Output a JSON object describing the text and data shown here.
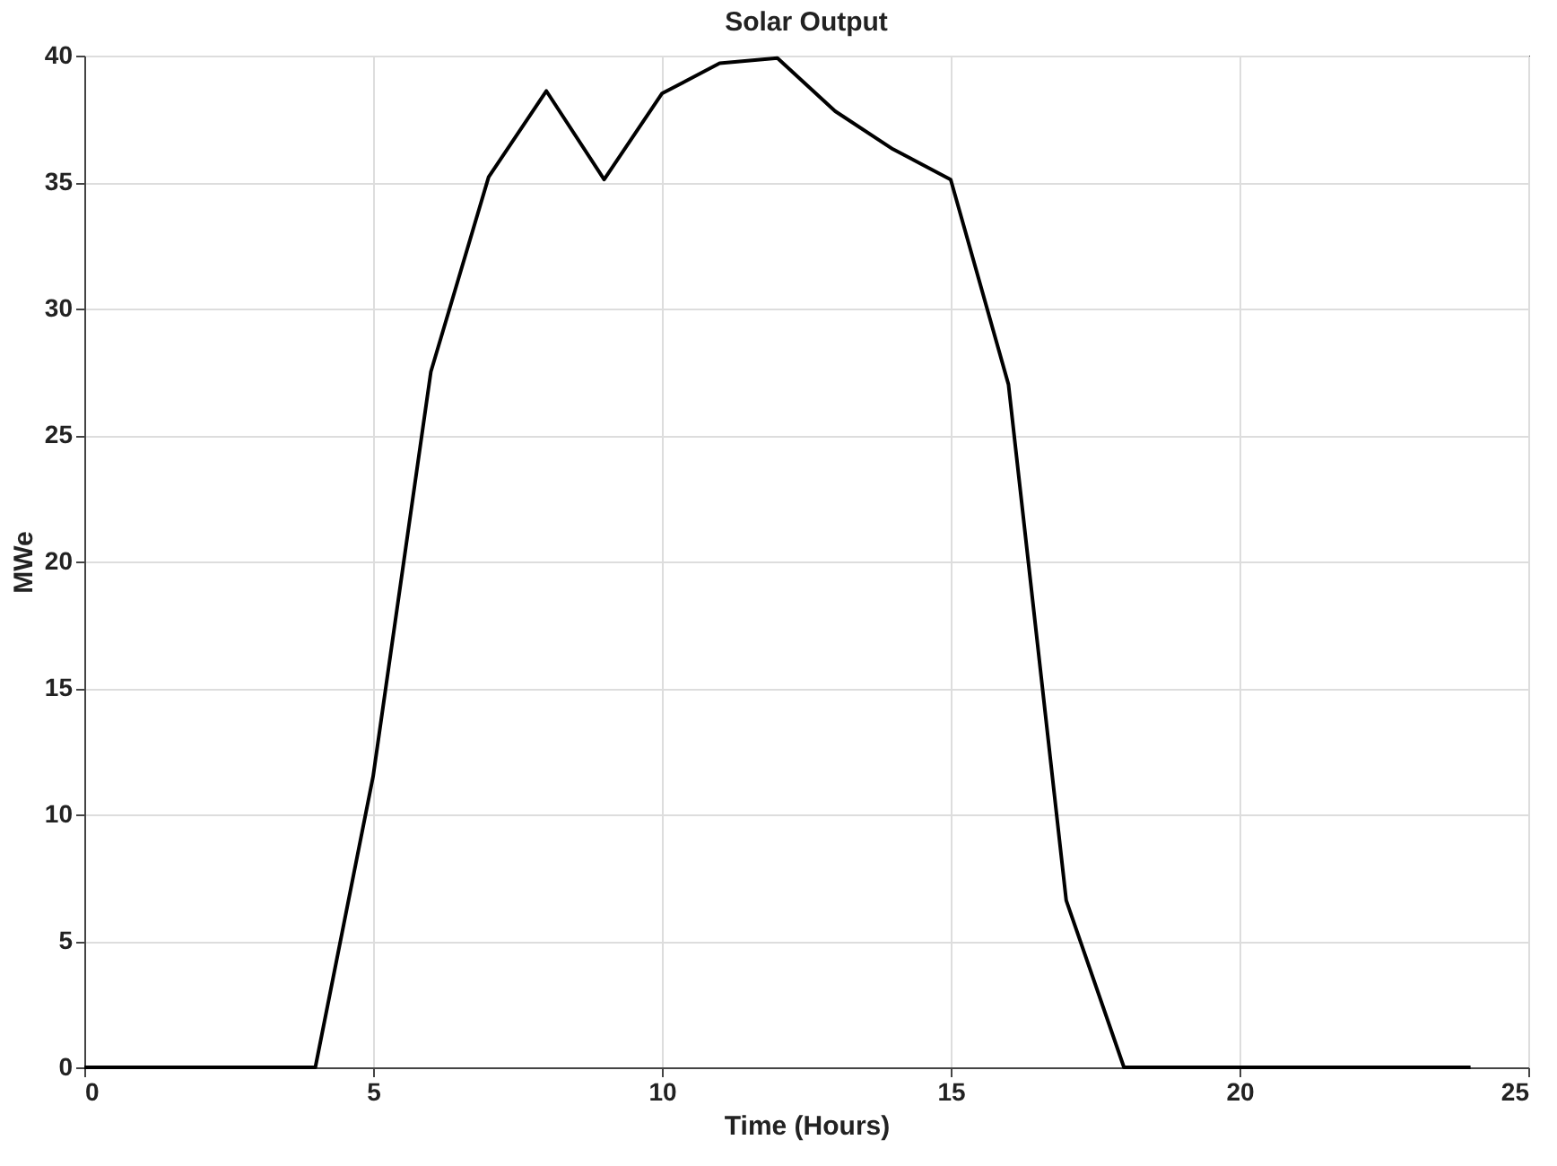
{
  "chart_data": {
    "type": "line",
    "title": "Solar Output",
    "xlabel": "Time (Hours)",
    "ylabel": "MWe",
    "x": [
      0,
      1,
      2,
      3,
      4,
      5,
      6,
      7,
      8,
      9,
      10,
      11,
      12,
      13,
      14,
      15,
      16,
      17,
      18,
      19,
      20,
      21,
      22,
      23,
      24
    ],
    "series": [
      {
        "color": "#000000",
        "values": [
          0,
          0,
          0,
          0,
          0,
          11.5,
          27.5,
          35.2,
          38.6,
          35.1,
          38.5,
          39.7,
          39.9,
          37.8,
          36.3,
          35.1,
          27.0,
          6.6,
          0,
          0,
          0,
          0,
          0,
          0,
          0
        ]
      }
    ],
    "xlim": [
      0,
      25
    ],
    "xticks": [
      0,
      5,
      10,
      15,
      20,
      25
    ],
    "ylim": [
      0,
      40
    ],
    "yticks": [
      0,
      5,
      10,
      15,
      20,
      25,
      30,
      35,
      40
    ],
    "grid": true,
    "marker": "none",
    "line_style": "solid"
  }
}
